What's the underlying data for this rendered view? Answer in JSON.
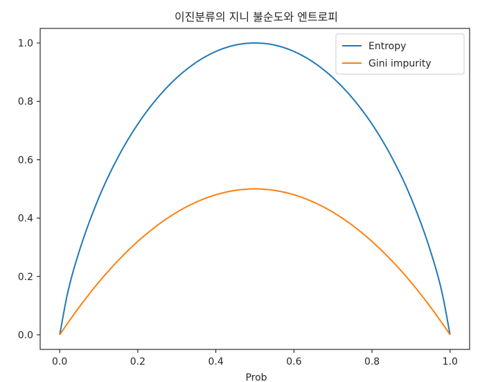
{
  "chart_data": {
    "type": "line",
    "title": "이진분류의 지니 불순도와 엔트로피",
    "xlabel": "Prob",
    "ylabel": "",
    "xlim": [
      -0.05,
      1.05
    ],
    "ylim": [
      -0.05,
      1.05
    ],
    "xticks": [
      0.0,
      0.2,
      0.4,
      0.6,
      0.8,
      1.0
    ],
    "yticks": [
      0.0,
      0.2,
      0.4,
      0.6,
      0.8,
      1.0
    ],
    "xtick_labels": [
      "0.0",
      "0.2",
      "0.4",
      "0.6",
      "0.8",
      "1.0"
    ],
    "ytick_labels": [
      "0.0",
      "0.2",
      "0.4",
      "0.6",
      "0.8",
      "1.0"
    ],
    "grid": false,
    "legend_position": "upper right",
    "x": [
      0.0,
      0.02,
      0.05,
      0.1,
      0.15,
      0.2,
      0.25,
      0.3,
      0.35,
      0.4,
      0.45,
      0.5,
      0.55,
      0.6,
      0.65,
      0.7,
      0.75,
      0.8,
      0.85,
      0.9,
      0.95,
      0.98,
      1.0
    ],
    "series": [
      {
        "name": "Entropy",
        "color": "#1f77b4",
        "values": [
          0.0,
          0.141,
          0.286,
          0.469,
          0.61,
          0.722,
          0.811,
          0.881,
          0.934,
          0.971,
          0.993,
          1.0,
          0.993,
          0.971,
          0.934,
          0.881,
          0.811,
          0.722,
          0.61,
          0.469,
          0.286,
          0.141,
          0.0
        ]
      },
      {
        "name": "Gini impurity",
        "color": "#ff7f0e",
        "values": [
          0.0,
          0.039,
          0.095,
          0.18,
          0.255,
          0.32,
          0.375,
          0.42,
          0.455,
          0.48,
          0.495,
          0.5,
          0.495,
          0.48,
          0.455,
          0.42,
          0.375,
          0.32,
          0.255,
          0.18,
          0.095,
          0.039,
          0.0
        ]
      }
    ]
  }
}
